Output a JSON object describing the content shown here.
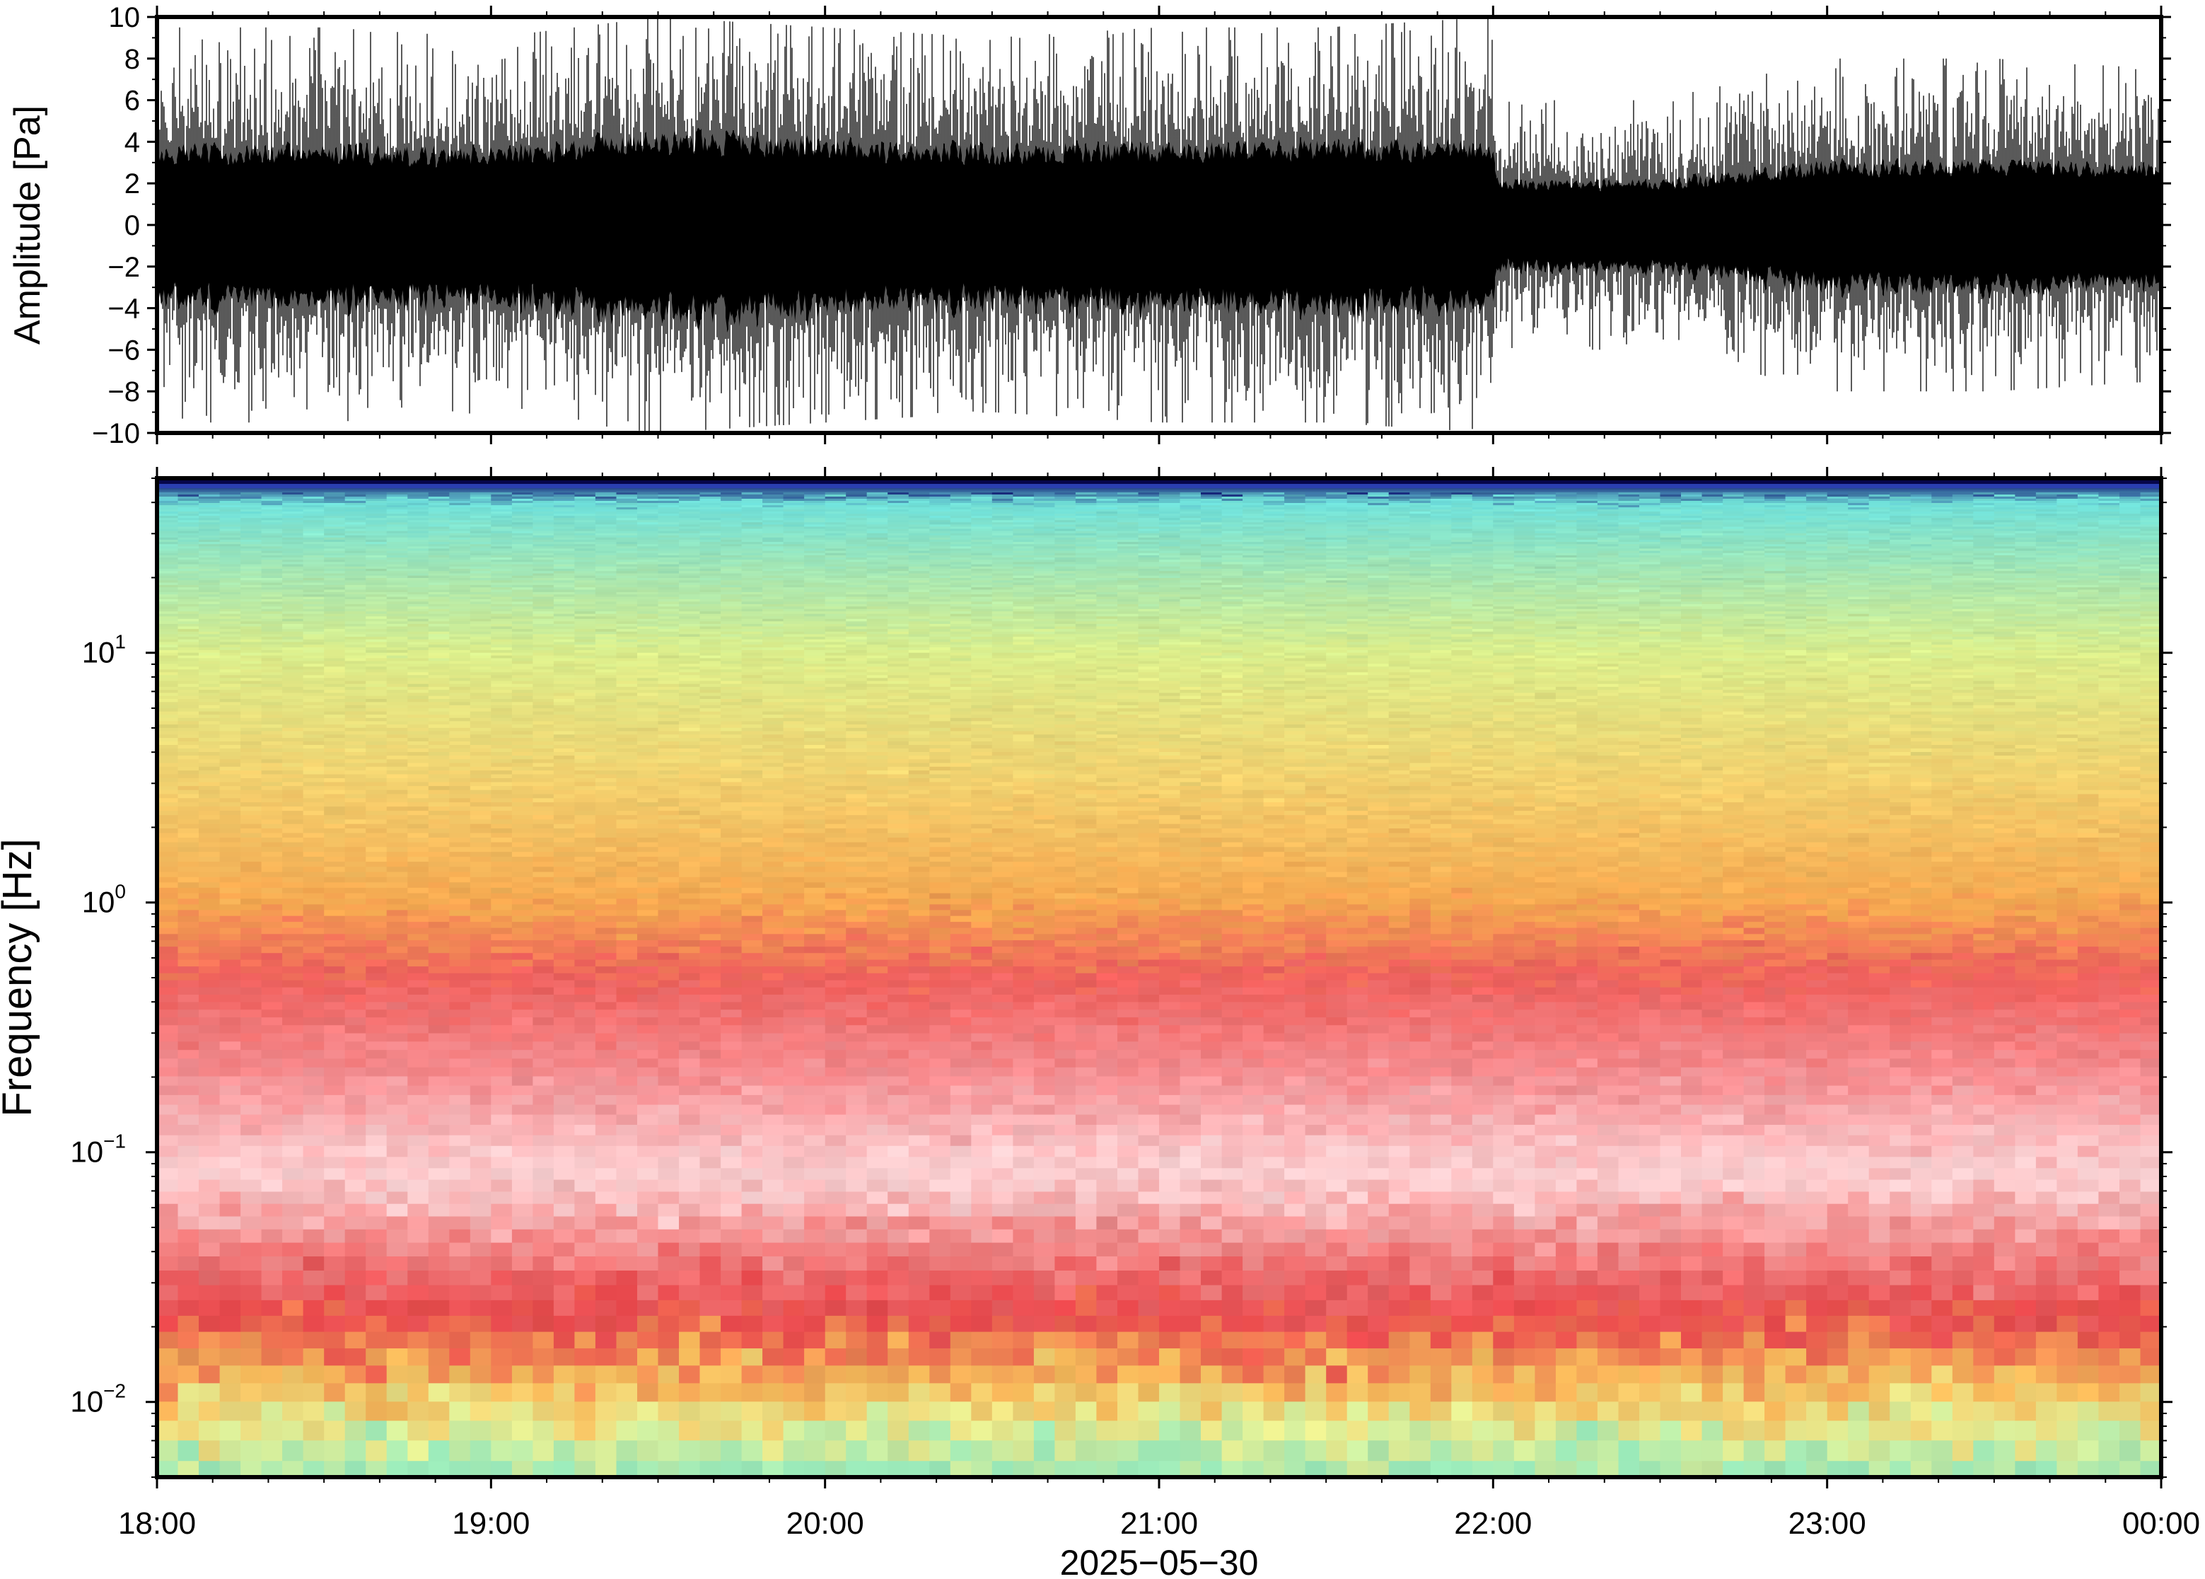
{
  "chart_data": [
    {
      "type": "line",
      "panel": "waveform",
      "ylabel": "Amplitude [Pa]",
      "ylim": [
        -10,
        10
      ],
      "yticks": [
        {
          "value": 10,
          "label": "10"
        },
        {
          "value": 8,
          "label": "8"
        },
        {
          "value": 6,
          "label": "6"
        },
        {
          "value": 4,
          "label": "4"
        },
        {
          "value": 2,
          "label": "2"
        },
        {
          "value": 0,
          "label": "0"
        },
        {
          "value": -2,
          "label": "−2"
        },
        {
          "value": -4,
          "label": "−4"
        },
        {
          "value": -6,
          "label": "−6"
        },
        {
          "value": -8,
          "label": "−8"
        },
        {
          "value": -10,
          "label": "−10"
        }
      ],
      "xlim": [
        "18:00",
        "00:00"
      ],
      "envelope": {
        "time": [
          "18:00",
          "18:30",
          "19:00",
          "19:30",
          "20:00",
          "20:30",
          "21:00",
          "21:30",
          "22:00",
          "22:01",
          "22:30",
          "23:00",
          "23:30",
          "00:00"
        ],
        "core_amplitude": [
          3.5,
          3.5,
          3.4,
          4.2,
          3.8,
          3.5,
          3.6,
          3.7,
          3.8,
          2.0,
          2.0,
          2.8,
          2.9,
          2.7
        ],
        "peak_amplitude": [
          9.5,
          9.5,
          9.0,
          10.0,
          9.5,
          9.0,
          9.5,
          9.5,
          10.0,
          6.0,
          6.0,
          8.0,
          8.0,
          7.5
        ]
      },
      "color": "#000000"
    },
    {
      "type": "heatmap",
      "panel": "spectrogram",
      "ylabel": "Frequency [Hz]",
      "yscale": "log",
      "ylim": [
        0.005,
        50
      ],
      "yticks": [
        {
          "value": 10,
          "base": "10",
          "exp": "1"
        },
        {
          "value": 1,
          "base": "10",
          "exp": "0"
        },
        {
          "value": 0.1,
          "base": "10",
          "exp": "−1"
        },
        {
          "value": 0.01,
          "base": "10",
          "exp": "−2"
        }
      ],
      "xlabel": "2025−05−30",
      "xlim": [
        "18:00",
        "00:00"
      ],
      "xticks": [
        "18:00",
        "19:00",
        "20:00",
        "21:00",
        "22:00",
        "23:00",
        "00:00"
      ],
      "frequency_profile": [
        {
          "hz": 48,
          "color": "#0a0a6e"
        },
        {
          "hz": 40,
          "color": "#6fe0da"
        },
        {
          "hz": 20,
          "color": "#a8e6b0"
        },
        {
          "hz": 10,
          "color": "#dbee8c"
        },
        {
          "hz": 3,
          "color": "#f2d06e"
        },
        {
          "hz": 1,
          "color": "#f5a850"
        },
        {
          "hz": 0.5,
          "color": "#ee5f5c"
        },
        {
          "hz": 0.2,
          "color": "#f58f93"
        },
        {
          "hz": 0.08,
          "color": "#fbd3d5"
        },
        {
          "hz": 0.04,
          "color": "#f08080"
        },
        {
          "hz": 0.022,
          "color": "#e8484c"
        },
        {
          "hz": 0.012,
          "color": "#f5b95a"
        },
        {
          "hz": 0.008,
          "color": "#e6ec90"
        },
        {
          "hz": 0.005,
          "color": "#9ae8b8"
        }
      ]
    }
  ]
}
